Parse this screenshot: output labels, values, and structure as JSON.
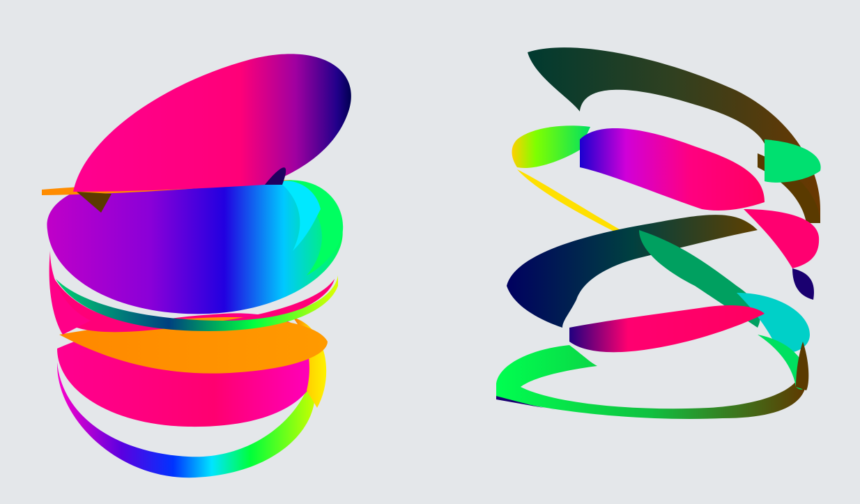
{
  "scene": {
    "background": "#e4e7ea",
    "panels": [
      {
        "name": "left-surface",
        "kind": "stacked helicoid sheets",
        "colors": [
          "#ff0080",
          "#8a00d4",
          "#1a00e0",
          "#00e5ff",
          "#00ff3a",
          "#ffea00",
          "#ff8c00"
        ]
      },
      {
        "name": "right-surface",
        "kind": "twisted ribbon loops",
        "colors": [
          "#003c3a",
          "#5a3a00",
          "#ff0080",
          "#00ff3a",
          "#000070",
          "#00e5ff",
          "#ffea00"
        ]
      }
    ]
  }
}
